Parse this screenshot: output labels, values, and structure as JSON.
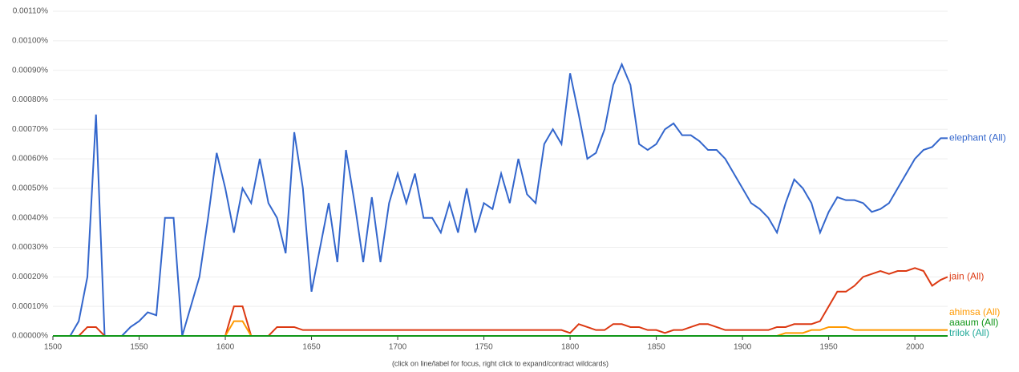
{
  "chart_data": {
    "type": "line",
    "x": [
      1500,
      1505,
      1510,
      1515,
      1520,
      1525,
      1530,
      1535,
      1540,
      1545,
      1550,
      1555,
      1560,
      1565,
      1570,
      1575,
      1580,
      1585,
      1590,
      1595,
      1600,
      1605,
      1610,
      1615,
      1620,
      1625,
      1630,
      1635,
      1640,
      1645,
      1650,
      1655,
      1660,
      1665,
      1670,
      1675,
      1680,
      1685,
      1690,
      1695,
      1700,
      1705,
      1710,
      1715,
      1720,
      1725,
      1730,
      1735,
      1740,
      1745,
      1750,
      1755,
      1760,
      1765,
      1770,
      1775,
      1780,
      1785,
      1790,
      1795,
      1800,
      1805,
      1810,
      1815,
      1820,
      1825,
      1830,
      1835,
      1840,
      1845,
      1850,
      1855,
      1860,
      1865,
      1870,
      1875,
      1880,
      1885,
      1890,
      1895,
      1900,
      1905,
      1910,
      1915,
      1920,
      1925,
      1930,
      1935,
      1940,
      1945,
      1950,
      1955,
      1960,
      1965,
      1970,
      1975,
      1980,
      1985,
      1990,
      1995,
      2000,
      2005,
      2010,
      2015,
      2019
    ],
    "series": [
      {
        "name": "elephant (All)",
        "color": "#3366cc",
        "values": [
          0,
          0,
          0,
          5e-05,
          0.0002,
          0.00075,
          0,
          0,
          0,
          3e-05,
          5e-05,
          8e-05,
          7e-05,
          0.0004,
          0.0004,
          0,
          0.0001,
          0.0002,
          0.0004,
          0.00062,
          0.0005,
          0.00035,
          0.0005,
          0.00045,
          0.0006,
          0.00045,
          0.0004,
          0.00028,
          0.00069,
          0.0005,
          0.00015,
          0.0003,
          0.00045,
          0.00025,
          0.00063,
          0.00045,
          0.00025,
          0.00047,
          0.00025,
          0.00045,
          0.00055,
          0.00045,
          0.00055,
          0.0004,
          0.0004,
          0.00035,
          0.00045,
          0.00035,
          0.0005,
          0.00035,
          0.00045,
          0.00043,
          0.00055,
          0.00045,
          0.0006,
          0.00048,
          0.00045,
          0.00065,
          0.0007,
          0.00065,
          0.00089,
          0.00075,
          0.0006,
          0.00062,
          0.0007,
          0.00085,
          0.00092,
          0.00085,
          0.00065,
          0.00063,
          0.00065,
          0.0007,
          0.00072,
          0.00068,
          0.00068,
          0.00066,
          0.00063,
          0.00063,
          0.0006,
          0.00055,
          0.0005,
          0.00045,
          0.00043,
          0.0004,
          0.00035,
          0.00045,
          0.00053,
          0.0005,
          0.00045,
          0.00035,
          0.00042,
          0.00047,
          0.00046,
          0.00046,
          0.00045,
          0.00042,
          0.00043,
          0.00045,
          0.0005,
          0.00055,
          0.0006,
          0.00063,
          0.00064,
          0.00067,
          0.00067
        ]
      },
      {
        "name": "jain (All)",
        "color": "#dc3912",
        "values": [
          0,
          0,
          0,
          0,
          3e-05,
          3e-05,
          0,
          0,
          0,
          0,
          0,
          0,
          0,
          0,
          0,
          0,
          0,
          0,
          0,
          0,
          0,
          0.0001,
          0.0001,
          0,
          0,
          0,
          3e-05,
          3e-05,
          3e-05,
          2e-05,
          2e-05,
          2e-05,
          2e-05,
          2e-05,
          2e-05,
          2e-05,
          2e-05,
          2e-05,
          2e-05,
          2e-05,
          2e-05,
          2e-05,
          2e-05,
          2e-05,
          2e-05,
          2e-05,
          2e-05,
          2e-05,
          2e-05,
          2e-05,
          2e-05,
          2e-05,
          2e-05,
          2e-05,
          2e-05,
          2e-05,
          2e-05,
          2e-05,
          2e-05,
          2e-05,
          1e-05,
          4e-05,
          3e-05,
          2e-05,
          2e-05,
          4e-05,
          4e-05,
          3e-05,
          3e-05,
          2e-05,
          2e-05,
          1e-05,
          2e-05,
          2e-05,
          3e-05,
          4e-05,
          4e-05,
          3e-05,
          2e-05,
          2e-05,
          2e-05,
          2e-05,
          2e-05,
          2e-05,
          3e-05,
          3e-05,
          4e-05,
          4e-05,
          4e-05,
          5e-05,
          0.0001,
          0.00015,
          0.00015,
          0.00017,
          0.0002,
          0.00021,
          0.00022,
          0.00021,
          0.00022,
          0.00022,
          0.00023,
          0.00022,
          0.00017,
          0.00019,
          0.0002
        ]
      },
      {
        "name": "ahimsa (All)",
        "color": "#ff9900",
        "values": [
          0,
          0,
          0,
          0,
          0,
          0,
          0,
          0,
          0,
          0,
          0,
          0,
          0,
          0,
          0,
          0,
          0,
          0,
          0,
          0,
          0,
          5e-05,
          5e-05,
          0,
          0,
          0,
          0,
          0,
          0,
          0,
          0,
          0,
          0,
          0,
          0,
          0,
          0,
          0,
          0,
          0,
          0,
          0,
          0,
          0,
          0,
          0,
          0,
          0,
          0,
          0,
          0,
          0,
          0,
          0,
          0,
          0,
          0,
          0,
          0,
          0,
          0,
          0,
          0,
          0,
          0,
          0,
          0,
          0,
          0,
          0,
          0,
          0,
          0,
          0,
          0,
          0,
          0,
          0,
          0,
          0,
          0,
          0,
          0,
          0,
          0,
          1e-05,
          1e-05,
          1e-05,
          2e-05,
          2e-05,
          3e-05,
          3e-05,
          3e-05,
          2e-05,
          2e-05,
          2e-05,
          2e-05,
          2e-05,
          2e-05,
          2e-05,
          2e-05,
          2e-05,
          2e-05,
          2e-05,
          2e-05
        ]
      },
      {
        "name": "trilok (All)",
        "color": "#22aa99",
        "values": [
          0,
          0,
          0,
          0,
          0,
          0,
          0,
          0,
          0,
          0,
          0,
          0,
          0,
          0,
          0,
          0,
          0,
          0,
          0,
          0,
          0,
          0,
          0,
          0,
          0,
          0,
          0,
          0,
          0,
          0,
          0,
          0,
          0,
          0,
          0,
          0,
          0,
          0,
          0,
          0,
          0,
          0,
          0,
          0,
          0,
          0,
          0,
          0,
          0,
          0,
          0,
          0,
          0,
          0,
          0,
          0,
          0,
          0,
          0,
          0,
          0,
          0,
          0,
          0,
          0,
          0,
          0,
          0,
          0,
          0,
          0,
          0,
          0,
          0,
          0,
          0,
          0,
          0,
          0,
          0,
          0,
          0,
          0,
          0,
          0,
          0,
          0,
          0,
          0,
          0,
          0,
          0,
          0,
          0,
          0,
          0,
          0,
          0,
          0,
          0,
          0,
          0,
          0,
          0,
          0
        ]
      },
      {
        "name": "aaaum (All)",
        "color": "#109618",
        "values": [
          0,
          0,
          0,
          0,
          0,
          0,
          0,
          0,
          0,
          0,
          0,
          0,
          0,
          0,
          0,
          0,
          0,
          0,
          0,
          0,
          0,
          0,
          0,
          0,
          0,
          0,
          0,
          0,
          0,
          0,
          0,
          0,
          0,
          0,
          0,
          0,
          0,
          0,
          0,
          0,
          0,
          0,
          0,
          0,
          0,
          0,
          0,
          0,
          0,
          0,
          0,
          0,
          0,
          0,
          0,
          0,
          0,
          0,
          0,
          0,
          0,
          0,
          0,
          0,
          0,
          0,
          0,
          0,
          0,
          0,
          0,
          0,
          0,
          0,
          0,
          0,
          0,
          0,
          0,
          0,
          0,
          0,
          0,
          0,
          0,
          0,
          0,
          0,
          0,
          0,
          0,
          0,
          0,
          0,
          0,
          0,
          0,
          0,
          0,
          0,
          0,
          0,
          0,
          0,
          0
        ]
      }
    ],
    "xlim": [
      1500,
      2019
    ],
    "xticks": [
      1500,
      1550,
      1600,
      1650,
      1700,
      1750,
      1800,
      1850,
      1900,
      1950,
      2000
    ],
    "ylim": [
      0,
      0.0011
    ],
    "yticks": [
      {
        "value": 0,
        "label": "0.00000%"
      },
      {
        "value": 0.0001,
        "label": "0.00010%"
      },
      {
        "value": 0.0002,
        "label": "0.00020%"
      },
      {
        "value": 0.0003,
        "label": "0.00030%"
      },
      {
        "value": 0.0004,
        "label": "0.00040%"
      },
      {
        "value": 0.0005,
        "label": "0.00050%"
      },
      {
        "value": 0.0006,
        "label": "0.00060%"
      },
      {
        "value": 0.0007,
        "label": "0.00070%"
      },
      {
        "value": 0.0008,
        "label": "0.00080%"
      },
      {
        "value": 0.0009,
        "label": "0.00090%"
      },
      {
        "value": 0.001,
        "label": "0.00100%"
      },
      {
        "value": 0.0011,
        "label": "0.00110%"
      }
    ],
    "grid": true,
    "footnote": "(click on line/label for focus, right click to expand/contract wildcards)"
  }
}
